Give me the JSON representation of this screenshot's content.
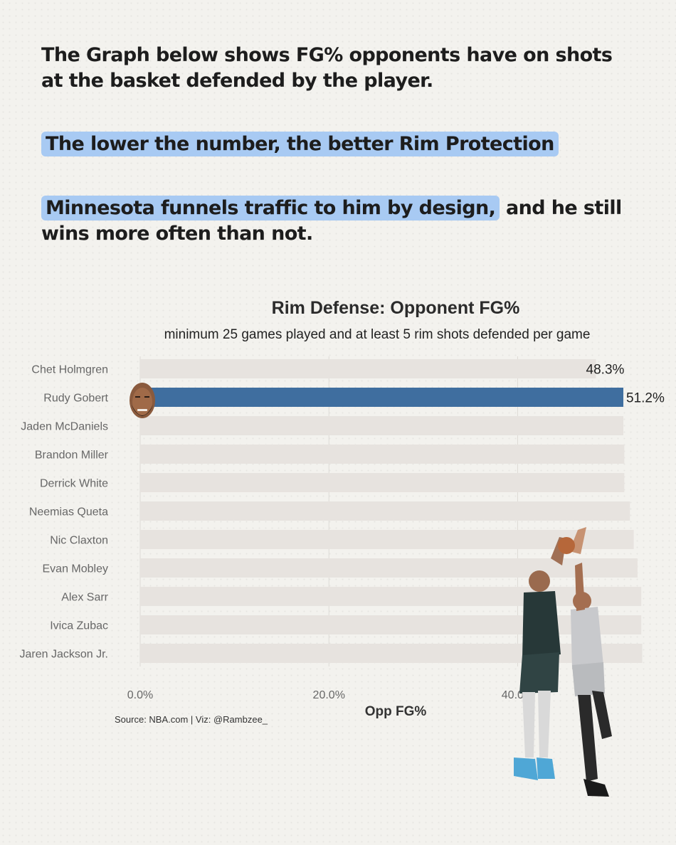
{
  "intro": {
    "line1": "The Graph below shows FG% opponents have on shots at the basket defended by the player.",
    "line2": "The lower the number, the better Rim Protection",
    "line3_highlight": "Minnesota funnels traffic to him by design,",
    "line3_rest": " and he still wins more often than not."
  },
  "chart_data": {
    "type": "bar",
    "orientation": "horizontal",
    "title": "Rim Defense: Opponent FG%",
    "subtitle": "minimum 25 games played and at least 5 rim shots defended per game",
    "xlabel": "Opp FG%",
    "categories": [
      "Chet Holmgren",
      "Rudy Gobert",
      "Jaden McDaniels",
      "Brandon Miller",
      "Derrick White",
      "Neemias Queta",
      "Nic Claxton",
      "Evan Mobley",
      "Alex Sarr",
      "Ivica Zubac",
      "Jaren Jackson Jr."
    ],
    "values": [
      48.3,
      51.2,
      51.2,
      51.3,
      51.3,
      51.9,
      52.3,
      52.7,
      53.1,
      53.1,
      53.2
    ],
    "labels": [
      "48.3%",
      "51.2%",
      "",
      "",
      "",
      "",
      "",
      "",
      "",
      "",
      ""
    ],
    "highlight": "Rudy Gobert",
    "xlim": [
      0,
      51.2
    ],
    "xticks": [
      0,
      20,
      40
    ],
    "xtick_labels": [
      "0.0%",
      "20.0%",
      "40.0%"
    ],
    "colors": {
      "highlight": "#3f6e9f",
      "default": "#e7e3df",
      "axis_text": "#676767"
    }
  },
  "source": "Source: NBA.com | Viz: @Rambzee_"
}
